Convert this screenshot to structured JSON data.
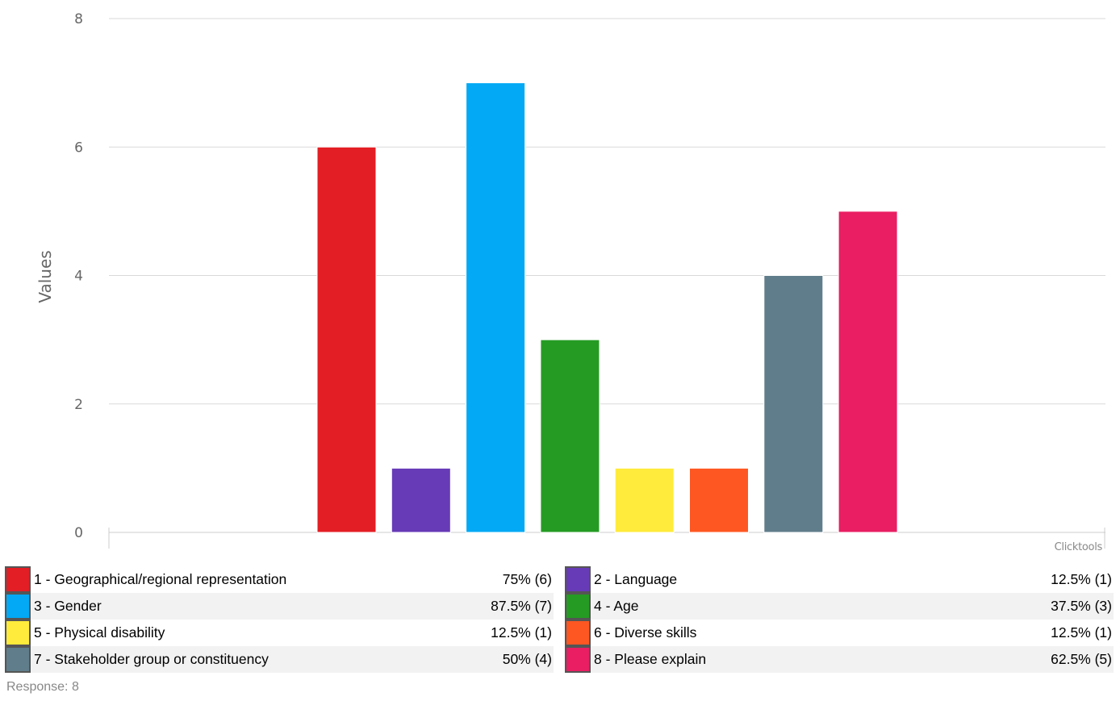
{
  "chart_data": {
    "type": "bar",
    "ylabel": "Values",
    "ylim": [
      0,
      8
    ],
    "yticks": [
      0,
      2,
      4,
      6,
      8
    ],
    "grid": true,
    "credit": "Clicktools",
    "categories": [
      "1 - Geographical/regional representation",
      "2 - Language",
      "3 - Gender",
      "4 - Age",
      "5 - Physical disability",
      "6 - Diverse skills",
      "7 - Stakeholder group or constituency",
      "8 - Please explain"
    ],
    "values": [
      6,
      1,
      7,
      3,
      1,
      1,
      4,
      5
    ],
    "colors": [
      "#e31e24",
      "#673ab7",
      "#03a9f4",
      "#259b24",
      "#ffeb3b",
      "#ff5722",
      "#607d8b",
      "#e91e63"
    ]
  },
  "legend": {
    "items": [
      {
        "label": "1 - Geographical/regional representation",
        "value": "75% (6)",
        "color": "#e31e24"
      },
      {
        "label": "2 - Language",
        "value": "12.5% (1)",
        "color": "#673ab7"
      },
      {
        "label": "3 - Gender",
        "value": "87.5% (7)",
        "color": "#03a9f4"
      },
      {
        "label": "4 - Age",
        "value": "37.5% (3)",
        "color": "#259b24"
      },
      {
        "label": "5 - Physical disability",
        "value": "12.5% (1)",
        "color": "#ffeb3b"
      },
      {
        "label": "6 - Diverse skills",
        "value": "12.5% (1)",
        "color": "#ff5722"
      },
      {
        "label": "7 - Stakeholder group or constituency",
        "value": "50% (4)",
        "color": "#607d8b"
      },
      {
        "label": "8 - Please explain",
        "value": "62.5% (5)",
        "color": "#e91e63"
      }
    ]
  },
  "footer": {
    "response_text": "Response: 8"
  }
}
